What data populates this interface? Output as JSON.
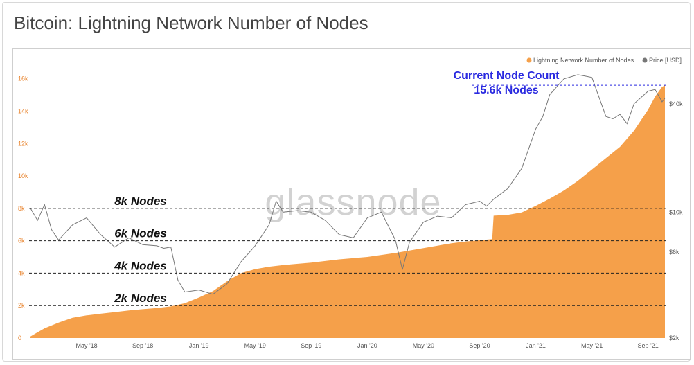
{
  "title": "Bitcoin: Lightning Network Number of Nodes",
  "watermark": "glassnode",
  "colors": {
    "nodes": "#f5a04a",
    "price": "#777777",
    "callout": "#2a2ae0",
    "left_axis": "#e8822a"
  },
  "chart_data": {
    "type": "area",
    "title": "Bitcoin: Lightning Network Number of Nodes",
    "legend": {
      "placement": "top-right",
      "entries": [
        "Lightning Network Number of Nodes",
        "Price [USD]"
      ]
    },
    "x_ticks": [
      "May '18",
      "Sep '18",
      "Jan '19",
      "May '19",
      "Sep '19",
      "Jan '20",
      "May '20",
      "Sep '20",
      "Jan '21",
      "May '21",
      "Sep '21"
    ],
    "x_tick_months": [
      4,
      8,
      12,
      16,
      20,
      24,
      28,
      32,
      36,
      40,
      44
    ],
    "x_range_months": [
      -0.1,
      45.3
    ],
    "y_left": {
      "ticks": [
        "0",
        "2k",
        "4k",
        "6k",
        "8k",
        "10k",
        "12k",
        "14k",
        "16k"
      ],
      "values": [
        0,
        2000,
        4000,
        6000,
        8000,
        10000,
        12000,
        14000,
        16000
      ],
      "range": [
        0,
        16800
      ]
    },
    "y_right": {
      "scale": "log",
      "ticks": [
        "$2k",
        "$6k",
        "$10k",
        "$40k"
      ],
      "values": [
        2000,
        6000,
        10000,
        40000
      ],
      "range": [
        2000,
        65000
      ]
    },
    "series": [
      {
        "name": "Lightning Network Number of Nodes",
        "axis": "left",
        "style": "area",
        "x_months": [
          0,
          0.5,
          1,
          2,
          3,
          4,
          5,
          6,
          7,
          8,
          9,
          10,
          11,
          12,
          13,
          13.5,
          14,
          15,
          16,
          17,
          18,
          20,
          22,
          24,
          26,
          27,
          28,
          29,
          30,
          31,
          32.9,
          33.0,
          34,
          35,
          36,
          37,
          38,
          39,
          40,
          41,
          42,
          43,
          44,
          44.5,
          45,
          45.2
        ],
        "values": [
          100,
          350,
          600,
          950,
          1250,
          1400,
          1500,
          1600,
          1700,
          1780,
          1850,
          1950,
          2150,
          2500,
          2900,
          3200,
          3500,
          4000,
          4250,
          4400,
          4500,
          4650,
          4850,
          5000,
          5250,
          5400,
          5550,
          5700,
          5850,
          5950,
          6100,
          7550,
          7600,
          7750,
          8150,
          8600,
          9100,
          9700,
          10400,
          11100,
          11800,
          12800,
          14100,
          14900,
          15500,
          15600
        ]
      },
      {
        "name": "Price [USD]",
        "axis": "right",
        "style": "line",
        "x_months": [
          0,
          0.5,
          1,
          1.5,
          2,
          3,
          4,
          5,
          6,
          7,
          8,
          9,
          9.5,
          10,
          10.5,
          11,
          12,
          13,
          14,
          15,
          16,
          17,
          17.5,
          18,
          19,
          20,
          21,
          22,
          23,
          24,
          25,
          26,
          26.5,
          27,
          28,
          29,
          30,
          31,
          32,
          32.5,
          33,
          34,
          35,
          36,
          36.5,
          37,
          38,
          39,
          39.5,
          40,
          41,
          41.5,
          42,
          42.5,
          43,
          44,
          44.5,
          45,
          45.2
        ],
        "values": [
          10500,
          9000,
          11000,
          8000,
          7000,
          8500,
          9300,
          7500,
          6400,
          7200,
          6600,
          6500,
          6300,
          6400,
          4200,
          3600,
          3700,
          3500,
          4000,
          5300,
          6500,
          8500,
          11500,
          10000,
          10200,
          10000,
          9000,
          7500,
          7200,
          9300,
          10000,
          7000,
          4800,
          6800,
          8800,
          9500,
          9300,
          11000,
          11500,
          10800,
          11800,
          13500,
          17500,
          29000,
          34000,
          45000,
          55000,
          58000,
          57000,
          56000,
          34000,
          33000,
          35000,
          31000,
          40000,
          47000,
          48000,
          41000,
          43000
        ]
      }
    ],
    "reference_lines": [
      {
        "label": "2k Nodes",
        "value": 2000
      },
      {
        "label": "4k Nodes",
        "value": 4000
      },
      {
        "label": "6k Nodes",
        "value": 6000
      },
      {
        "label": "8k Nodes",
        "value": 8000
      }
    ],
    "callout": {
      "line1": "Current Node Count",
      "line2": "15.6k Nodes",
      "value": 15600
    }
  }
}
